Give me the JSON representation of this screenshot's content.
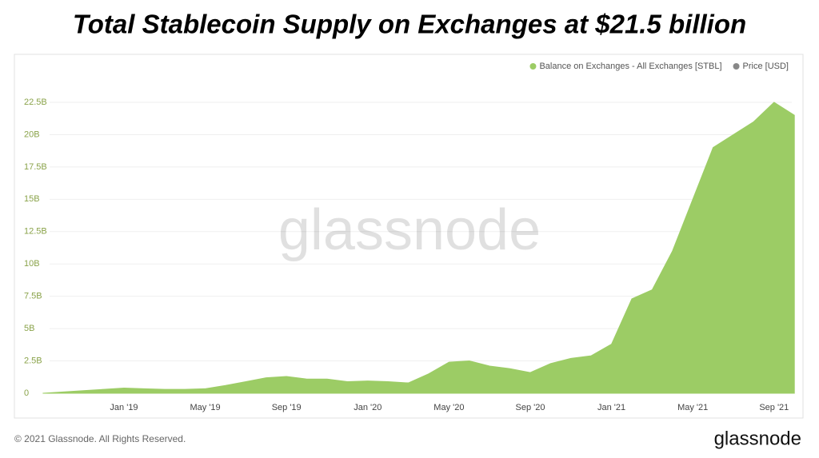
{
  "chart_data": {
    "type": "area",
    "title": "Total Stablecoin Supply on Exchanges at $21.5 billion",
    "watermark": "glassnode",
    "copyright": "© 2021 Glassnode. All Rights Reserved.",
    "logo": "glassnode",
    "categories": [
      null,
      null,
      null,
      null,
      "Jan '19",
      null,
      null,
      null,
      "May '19",
      null,
      null,
      null,
      "Sep '19",
      null,
      null,
      null,
      "Jan '20",
      null,
      null,
      null,
      "May '20",
      null,
      null,
      null,
      "Sep '20",
      null,
      null,
      null,
      "Jan '21",
      null,
      null,
      null,
      "May '21",
      null,
      null,
      null,
      "Sep '21",
      null
    ],
    "series": [
      {
        "name": "Balance on Exchanges - All Exchanges [STBL]",
        "color": "#9ccc65",
        "values": [
          0,
          100000000,
          200000000,
          300000000,
          400000000,
          350000000,
          300000000,
          300000000,
          350000000,
          600000000,
          900000000,
          1200000000,
          1300000000,
          1100000000,
          1100000000,
          900000000,
          950000000,
          900000000,
          800000000,
          1500000000,
          2400000000,
          2500000000,
          2100000000,
          1900000000,
          1600000000,
          2300000000,
          2700000000,
          2900000000,
          3800000000,
          7300000000,
          8000000000,
          11000000000,
          15000000000,
          19000000000,
          20000000000,
          21000000000,
          22500000000,
          21500000000
        ]
      },
      {
        "name": "Price [USD]",
        "color": "#888888",
        "values": [
          null,
          null,
          null,
          null,
          null,
          null,
          null,
          null,
          null,
          null,
          null,
          null,
          null,
          null,
          null,
          null,
          null,
          null,
          null,
          null,
          null,
          null,
          null,
          null,
          null,
          null,
          null,
          null,
          null,
          null,
          null,
          null,
          null,
          null,
          null,
          null,
          null,
          null
        ]
      }
    ],
    "ylim": [
      0,
      22500000000
    ],
    "yticks": [
      {
        "value": 0,
        "label": "0"
      },
      {
        "value": 2500000000,
        "label": "2.5B"
      },
      {
        "value": 5000000000,
        "label": "5B"
      },
      {
        "value": 7500000000,
        "label": "7.5B"
      },
      {
        "value": 10000000000,
        "label": "10B"
      },
      {
        "value": 12500000000,
        "label": "12.5B"
      },
      {
        "value": 15000000000,
        "label": "15B"
      },
      {
        "value": 17500000000,
        "label": "17.5B"
      },
      {
        "value": 20000000000,
        "label": "20B"
      },
      {
        "value": 22500000000,
        "label": "22.5B"
      }
    ],
    "grid": true,
    "legend": "top-right"
  }
}
